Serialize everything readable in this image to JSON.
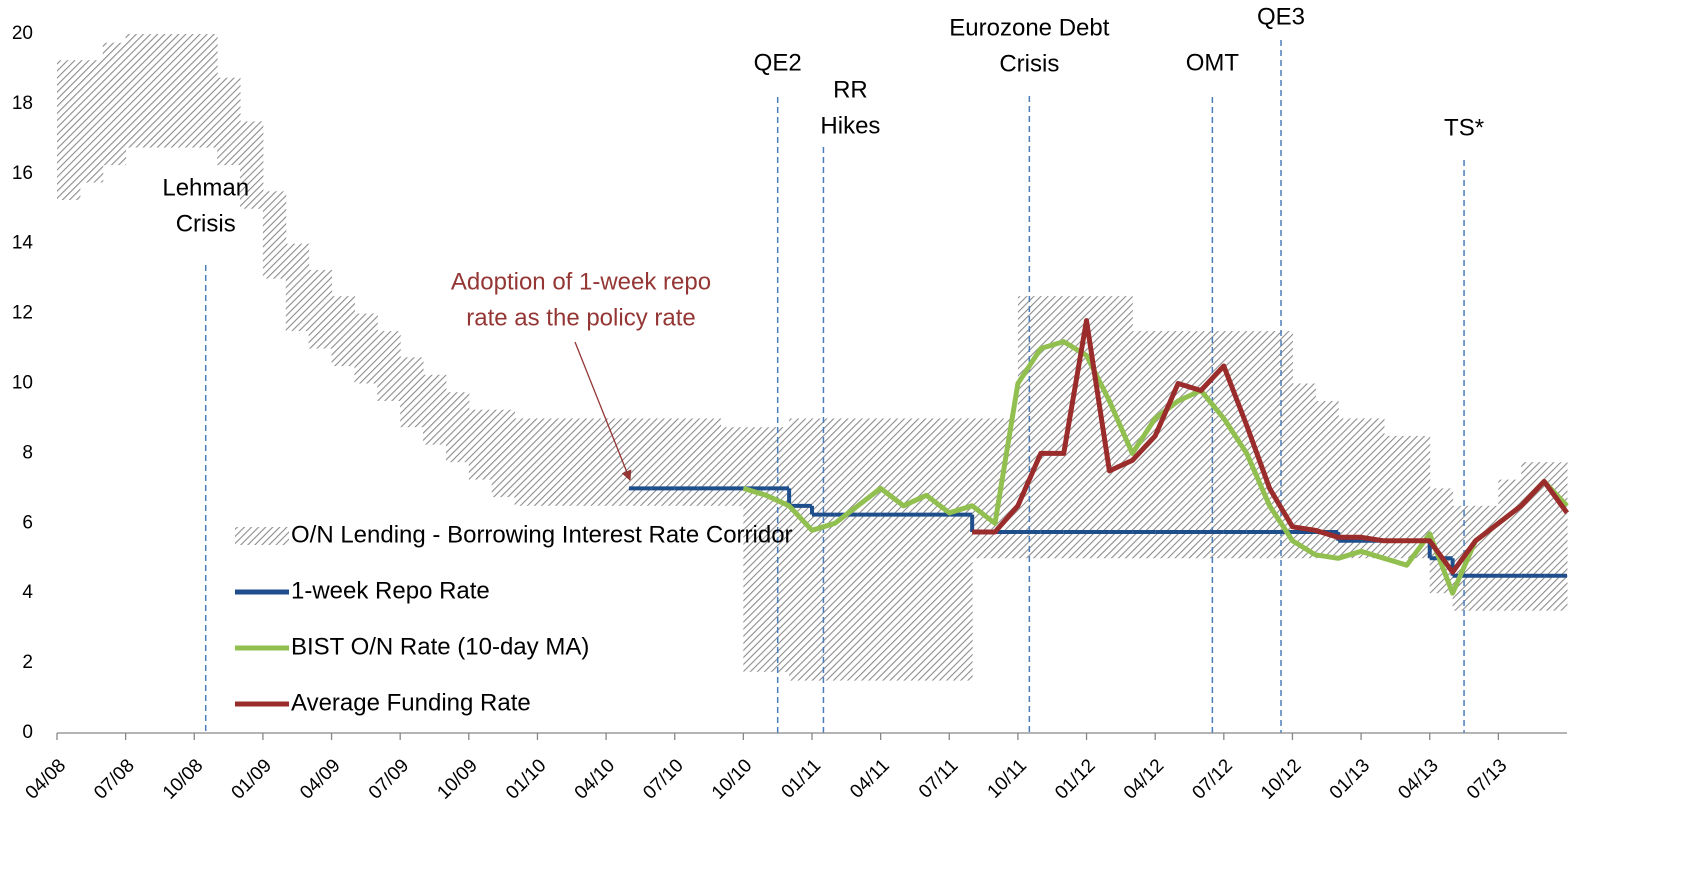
{
  "chart_data": {
    "type": "line",
    "x": [
      "2008-04",
      "2008-05",
      "2008-06",
      "2008-07",
      "2008-08",
      "2008-09",
      "2008-10",
      "2008-11",
      "2008-12",
      "2009-01",
      "2009-02",
      "2009-03",
      "2009-04",
      "2009-05",
      "2009-06",
      "2009-07",
      "2009-08",
      "2009-09",
      "2009-10",
      "2009-11",
      "2009-12",
      "2010-01",
      "2010-02",
      "2010-03",
      "2010-04",
      "2010-05",
      "2010-06",
      "2010-07",
      "2010-08",
      "2010-09",
      "2010-10",
      "2010-11",
      "2010-12",
      "2011-01",
      "2011-02",
      "2011-03",
      "2011-04",
      "2011-05",
      "2011-06",
      "2011-07",
      "2011-08",
      "2011-09",
      "2011-10",
      "2011-11",
      "2011-12",
      "2012-01",
      "2012-02",
      "2012-03",
      "2012-04",
      "2012-05",
      "2012-06",
      "2012-07",
      "2012-08",
      "2012-09",
      "2012-10",
      "2012-11",
      "2012-12",
      "2013-01",
      "2013-02",
      "2013-03",
      "2013-04",
      "2013-05",
      "2013-06",
      "2013-07",
      "2013-08",
      "2013-09",
      "2013-10"
    ],
    "xlim": [
      "2008-04",
      "2013-10"
    ],
    "xticks": [
      {
        "value": "2008-04",
        "label": "04/08"
      },
      {
        "value": "2008-07",
        "label": "07/08"
      },
      {
        "value": "2008-10",
        "label": "10/08"
      },
      {
        "value": "2009-01",
        "label": "01/09"
      },
      {
        "value": "2009-04",
        "label": "04/09"
      },
      {
        "value": "2009-07",
        "label": "07/09"
      },
      {
        "value": "2009-10",
        "label": "10/09"
      },
      {
        "value": "2010-01",
        "label": "01/10"
      },
      {
        "value": "2010-04",
        "label": "04/10"
      },
      {
        "value": "2010-07",
        "label": "07/10"
      },
      {
        "value": "2010-10",
        "label": "10/10"
      },
      {
        "value": "2011-01",
        "label": "01/11"
      },
      {
        "value": "2011-04",
        "label": "04/11"
      },
      {
        "value": "2011-07",
        "label": "07/11"
      },
      {
        "value": "2011-10",
        "label": "10/11"
      },
      {
        "value": "2012-01",
        "label": "01/12"
      },
      {
        "value": "2012-04",
        "label": "04/12"
      },
      {
        "value": "2012-07",
        "label": "07/12"
      },
      {
        "value": "2012-10",
        "label": "10/12"
      },
      {
        "value": "2013-01",
        "label": "01/13"
      },
      {
        "value": "2013-04",
        "label": "04/13"
      },
      {
        "value": "2013-07",
        "label": "07/13"
      }
    ],
    "ylim": [
      0,
      20
    ],
    "yticks": [
      0,
      2,
      4,
      6,
      8,
      10,
      12,
      14,
      16,
      18,
      20
    ],
    "legend": "lower left",
    "corridor": {
      "name": "O/N Lending - Borrowing Interest Rate Corridor",
      "color": "#8c8c8c",
      "upper": [
        19.25,
        19.25,
        19.75,
        20,
        20,
        20,
        20,
        18.75,
        17.5,
        15.5,
        14.0,
        13.25,
        12.5,
        12.0,
        11.5,
        10.75,
        10.25,
        9.75,
        9.25,
        9.25,
        9,
        9,
        9,
        9,
        9,
        9,
        9,
        9,
        9,
        8.75,
        8.75,
        8.75,
        9,
        9,
        9,
        9,
        9,
        9,
        9,
        9,
        9,
        9,
        12.5,
        12.5,
        12.5,
        12.5,
        12.5,
        11.5,
        11.5,
        11.5,
        11.5,
        11.5,
        11.5,
        11.5,
        10,
        9.5,
        9,
        9,
        8.5,
        8.5,
        7,
        6.5,
        6.5,
        7.25,
        7.75,
        7.75,
        7.75
      ],
      "lower": [
        15.25,
        15.75,
        16.25,
        16.75,
        16.75,
        16.75,
        16.75,
        16.25,
        15,
        13,
        11.5,
        11,
        10.5,
        10,
        9.5,
        8.75,
        8.25,
        7.75,
        7.25,
        6.75,
        6.5,
        6.5,
        6.5,
        6.5,
        6.5,
        6.5,
        6.5,
        6.5,
        6.5,
        6.5,
        1.75,
        1.75,
        1.5,
        1.5,
        1.5,
        1.5,
        1.5,
        1.5,
        1.5,
        1.5,
        5,
        5,
        5,
        5,
        5,
        5,
        5,
        5,
        5,
        5,
        5,
        5,
        5,
        5,
        5,
        5,
        5,
        5,
        5,
        5,
        4,
        3.5,
        3.5,
        3.5,
        3.5,
        3.5,
        3.5
      ]
    },
    "series": [
      {
        "name": "1-week Repo Rate",
        "color": "#1f4e8c",
        "step": true,
        "values": [
          null,
          null,
          null,
          null,
          null,
          null,
          null,
          null,
          null,
          null,
          null,
          null,
          null,
          null,
          null,
          null,
          null,
          null,
          null,
          null,
          null,
          null,
          null,
          null,
          null,
          7,
          7,
          7,
          7,
          7,
          7,
          7,
          6.5,
          6.25,
          6.25,
          6.25,
          6.25,
          6.25,
          6.25,
          6.25,
          5.75,
          5.75,
          5.75,
          5.75,
          5.75,
          5.75,
          5.75,
          5.75,
          5.75,
          5.75,
          5.75,
          5.75,
          5.75,
          5.75,
          5.75,
          5.75,
          5.5,
          5.5,
          5.5,
          5.5,
          5,
          4.5,
          4.5,
          4.5,
          4.5,
          4.5,
          4.5
        ]
      },
      {
        "name": "BIST O/N Rate (10-day MA)",
        "color": "#92c050",
        "step": false,
        "values": [
          null,
          null,
          null,
          null,
          null,
          null,
          null,
          null,
          null,
          null,
          null,
          null,
          null,
          null,
          null,
          null,
          null,
          null,
          null,
          null,
          null,
          null,
          null,
          null,
          null,
          null,
          null,
          null,
          null,
          null,
          7.0,
          6.8,
          6.5,
          5.8,
          6.0,
          6.5,
          7.0,
          6.5,
          6.8,
          6.3,
          6.5,
          6.0,
          10.0,
          11.0,
          11.2,
          10.8,
          9.5,
          8.0,
          9.0,
          9.5,
          9.8,
          9.0,
          8.0,
          6.5,
          5.5,
          5.1,
          5.0,
          5.2,
          5.0,
          4.8,
          5.7,
          4.0,
          5.5,
          6.0,
          6.5,
          7.2,
          6.5
        ]
      },
      {
        "name": "Average Funding Rate",
        "color": "#9b2c2c",
        "step": false,
        "values": [
          null,
          null,
          null,
          null,
          null,
          null,
          null,
          null,
          null,
          null,
          null,
          null,
          null,
          null,
          null,
          null,
          null,
          null,
          null,
          null,
          null,
          null,
          null,
          null,
          null,
          null,
          null,
          null,
          null,
          null,
          null,
          null,
          null,
          null,
          null,
          null,
          null,
          null,
          null,
          null,
          5.75,
          5.75,
          6.5,
          8.0,
          8.0,
          11.8,
          7.5,
          7.8,
          8.5,
          10.0,
          9.8,
          10.5,
          8.8,
          7.0,
          5.9,
          5.8,
          5.6,
          5.6,
          5.5,
          5.5,
          5.5,
          4.6,
          5.5,
          6.0,
          6.5,
          7.2,
          6.3
        ]
      }
    ],
    "events": [
      {
        "label": [
          "Lehman",
          "Crisis"
        ],
        "x": "2008-10"
      },
      {
        "label": [
          "QE2"
        ],
        "x": "2010-11"
      },
      {
        "label": [
          "RR",
          "Hikes"
        ],
        "x": "2011-01"
      },
      {
        "label": [
          "Eurozone Debt",
          "Crisis"
        ],
        "x": "2011-10"
      },
      {
        "label": [
          "OMT"
        ],
        "x": "2012-06"
      },
      {
        "label": [
          "QE3"
        ],
        "x": "2012-09"
      },
      {
        "label": [
          "TS*"
        ],
        "x": "2013-05"
      }
    ],
    "annotation": {
      "text": [
        "Adoption of 1-week repo",
        "rate as the policy rate"
      ],
      "color": "#943634"
    }
  }
}
